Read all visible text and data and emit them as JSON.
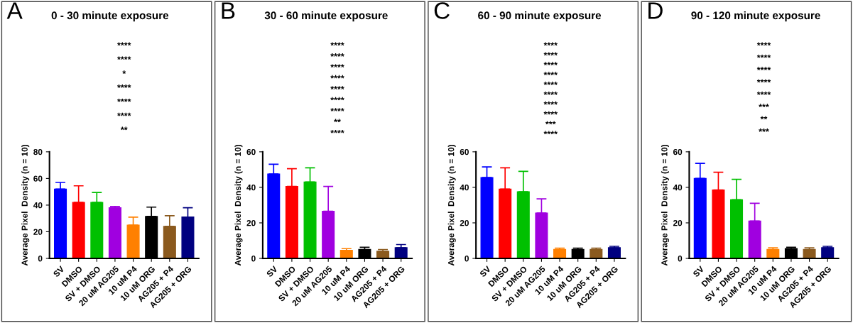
{
  "chart_data": [
    {
      "type": "bar",
      "title": "0 - 30 minute exposure",
      "ylabel": "Average Pixel  Density (n = 10)",
      "categories": [
        "SV",
        "DMSO",
        "SV + DMSO",
        "20 uM AG205",
        "10 uM P4",
        "10 uM ORG",
        "AG205 + P4",
        "AG205 + ORG"
      ],
      "values": [
        52,
        42,
        42,
        38,
        25,
        31.5,
        24,
        31
      ],
      "errors": [
        [
          52,
          57
        ],
        [
          42,
          54.5
        ],
        [
          42,
          49.5
        ],
        [
          38,
          39
        ],
        [
          25,
          31
        ],
        [
          31.5,
          38.5
        ],
        [
          24,
          32
        ],
        [
          31,
          38
        ]
      ],
      "colors": [
        "#0000ff",
        "#ff0000",
        "#00c000",
        "#a000e0",
        "#ff8000",
        "#000000",
        "#8b5a1e",
        "#000080"
      ],
      "ylim": [
        0,
        80
      ],
      "yticks": [
        0,
        20,
        40,
        60,
        80
      ],
      "grid": false,
      "annotations": [
        "A",
        "****",
        "****",
        "*",
        "****",
        "****",
        "****",
        "**"
      ]
    },
    {
      "type": "bar",
      "title": "30 - 60 minute exposure",
      "ylabel": "Average Pixel  Density (n = 10)",
      "categories": [
        "SV",
        "DMSO",
        "SV + DMSO",
        "20 uM AG205",
        "10 uM P4",
        "10 uM ORG",
        "AG205 + P4",
        "AG205 + ORG"
      ],
      "values": [
        47.5,
        40.5,
        43,
        26.5,
        4.5,
        5,
        4,
        6
      ],
      "errors": [
        [
          47.5,
          53
        ],
        [
          40.5,
          50.5
        ],
        [
          43,
          51
        ],
        [
          26.5,
          40.5
        ],
        [
          4.5,
          5.5
        ],
        [
          5,
          6.3
        ],
        [
          4,
          5
        ],
        [
          6,
          7.8
        ]
      ],
      "colors": [
        "#0000ff",
        "#ff0000",
        "#00c000",
        "#a000e0",
        "#ff8000",
        "#000000",
        "#8b5a1e",
        "#000080"
      ],
      "ylim": [
        0,
        60
      ],
      "yticks": [
        0,
        20,
        40,
        60
      ],
      "grid": false,
      "annotations": [
        "B",
        "****",
        "****",
        "****",
        "****",
        "****",
        "****",
        "****",
        "**",
        "****"
      ]
    },
    {
      "type": "bar",
      "title": "60 - 90 minute exposure",
      "ylabel": "Average Pixel  Density (n = 10)",
      "categories": [
        "SV",
        "DMSO",
        "SV + DMSO",
        "20 uM AG205",
        "10 uM P4",
        "10 uM ORG",
        "AG205 + P4",
        "AG205 + ORG"
      ],
      "values": [
        45.5,
        39,
        37.5,
        25.5,
        5,
        5,
        5,
        6
      ],
      "errors": [
        [
          45.5,
          51.5
        ],
        [
          39,
          51
        ],
        [
          37.5,
          49
        ],
        [
          25.5,
          33.5
        ],
        [
          5,
          5.8
        ],
        [
          5,
          5.8
        ],
        [
          5,
          5.8
        ],
        [
          6,
          6.8
        ]
      ],
      "colors": [
        "#0000ff",
        "#ff0000",
        "#00c000",
        "#a000e0",
        "#ff8000",
        "#000000",
        "#8b5a1e",
        "#000080"
      ],
      "ylim": [
        0,
        60
      ],
      "yticks": [
        0,
        20,
        40,
        60
      ],
      "grid": false,
      "annotations": [
        "C",
        "****",
        "****",
        "****",
        "****",
        "****",
        "****",
        "****",
        "****",
        "***",
        "****"
      ]
    },
    {
      "type": "bar",
      "title": "90 - 120 minute exposure",
      "ylabel": "Average Pixel  Density (n = 10)",
      "categories": [
        "SV",
        "DMSO",
        "SV + DMSO",
        "20 uM AG205",
        "10 uM P4",
        "10 uM ORG",
        "AG205 + P4",
        "AG205 + ORG"
      ],
      "values": [
        45,
        38.5,
        33,
        21,
        5,
        5.5,
        5,
        6
      ],
      "errors": [
        [
          45,
          53.5
        ],
        [
          38.5,
          48.5
        ],
        [
          33,
          44.5
        ],
        [
          21,
          31
        ],
        [
          5,
          6
        ],
        [
          5.5,
          6.3
        ],
        [
          5,
          6
        ],
        [
          6,
          6.8
        ]
      ],
      "colors": [
        "#0000ff",
        "#ff0000",
        "#00c000",
        "#a000e0",
        "#ff8000",
        "#000000",
        "#8b5a1e",
        "#000080"
      ],
      "ylim": [
        0,
        60
      ],
      "yticks": [
        0,
        20,
        40,
        60
      ],
      "grid": false,
      "annotations": [
        "D",
        "****",
        "****",
        "****",
        "****",
        "****",
        "***",
        "**",
        "***"
      ]
    }
  ]
}
